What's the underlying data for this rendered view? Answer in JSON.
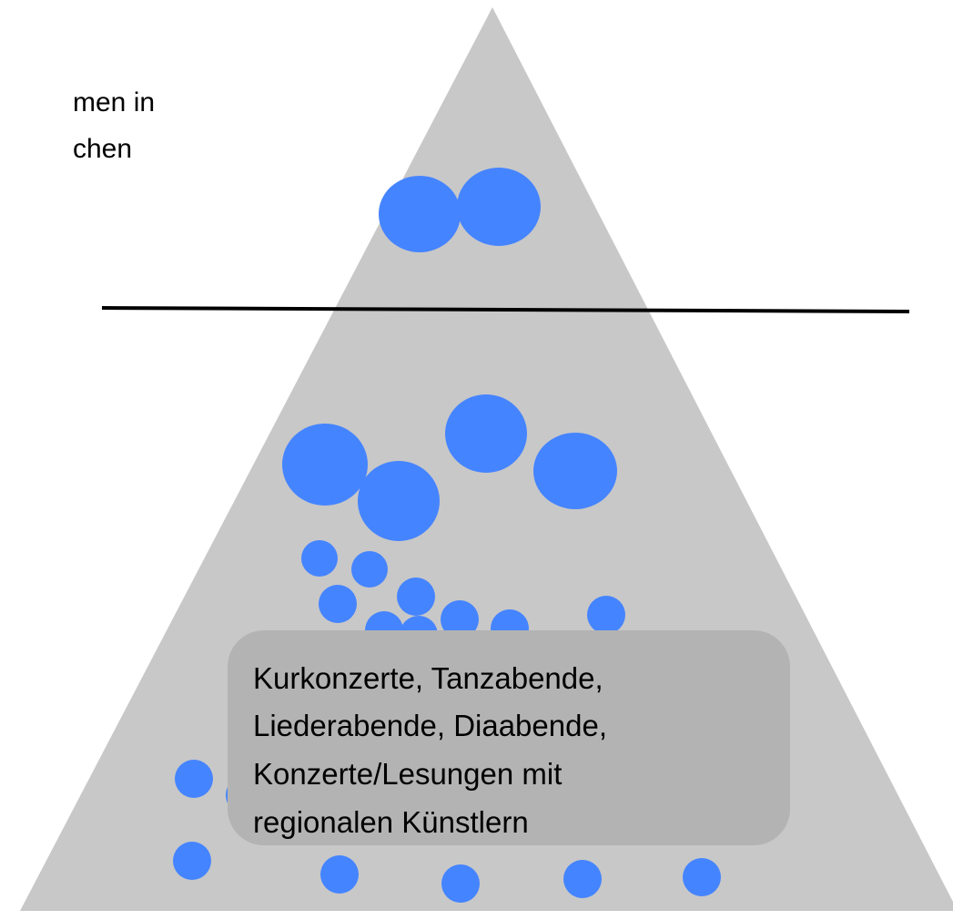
{
  "intro": {
    "lines": [
      "men in",
      "chen"
    ]
  },
  "box": {
    "lines": [
      "Kurkonzerte, Tanzabende,",
      "Liederabende, Diaabende,",
      "Konzerte/Lesungen mit",
      "regionalen Künstlern"
    ]
  }
}
